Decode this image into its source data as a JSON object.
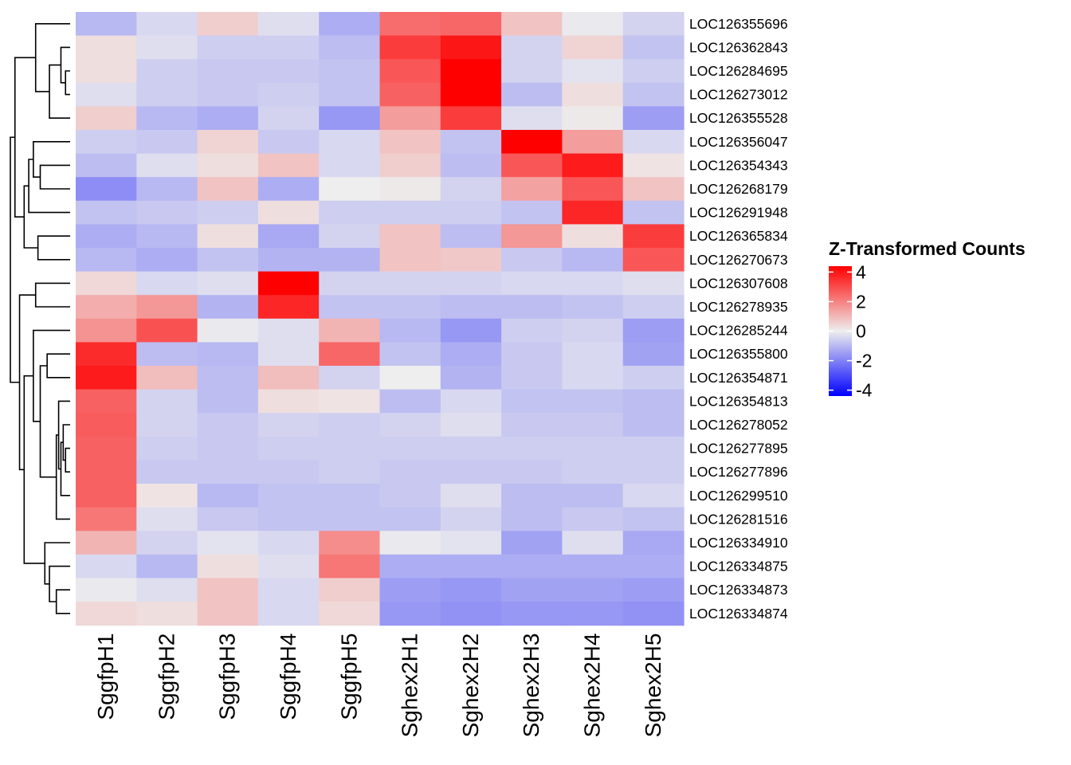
{
  "chart_data": {
    "type": "heatmap",
    "legend": {
      "title": "Z-Transformed Counts",
      "ticks": [
        4,
        2,
        0,
        -2,
        -4
      ],
      "tick_labels": [
        "4",
        "2",
        "0",
        "-2",
        "-4"
      ],
      "range": [
        -4.4,
        4.4
      ],
      "position": "right"
    },
    "color_low": "#0000FF",
    "color_mid": "#EEEEEE",
    "color_high": "#FF0000",
    "columns": [
      "SggfpH1",
      "SggfpH2",
      "SggfpH3",
      "SggfpH4",
      "SggfpH5",
      "Sghex2H1",
      "Sghex2H2",
      "Sghex2H3",
      "Sghex2H4",
      "Sghex2H5"
    ],
    "rows": [
      "LOC126355696",
      "LOC126362843",
      "LOC126284695",
      "LOC126273012",
      "LOC126355528",
      "LOC126356047",
      "LOC126354343",
      "LOC126268179",
      "LOC126291948",
      "LOC126365834",
      "LOC126270673",
      "LOC126307608",
      "LOC126278935",
      "LOC126285244",
      "LOC126355800",
      "LOC126354871",
      "LOC126354813",
      "LOC126278052",
      "LOC126277895",
      "LOC126277896",
      "LOC126299510",
      "LOC126281516",
      "LOC126334910",
      "LOC126334875",
      "LOC126334873",
      "LOC126334874"
    ],
    "values": [
      [
        -1.0,
        -0.4,
        0.6,
        -0.3,
        -1.2,
        2.4,
        2.5,
        0.8,
        -0.1,
        -0.5
      ],
      [
        0.3,
        -0.3,
        -0.6,
        -0.6,
        -0.9,
        3.3,
        4.0,
        -0.5,
        0.5,
        -0.8
      ],
      [
        0.3,
        -0.6,
        -0.7,
        -0.7,
        -0.8,
        2.8,
        4.4,
        -0.5,
        -0.2,
        -0.6
      ],
      [
        -0.3,
        -0.6,
        -0.7,
        -0.6,
        -0.8,
        2.6,
        4.4,
        -0.9,
        0.3,
        -0.8
      ],
      [
        0.6,
        -1.0,
        -1.2,
        -0.5,
        -1.6,
        1.5,
        3.3,
        -0.3,
        0.1,
        -1.5
      ],
      [
        -0.6,
        -0.7,
        0.5,
        -0.7,
        -0.4,
        0.8,
        -0.8,
        4.4,
        1.5,
        -0.4
      ],
      [
        -0.9,
        -0.3,
        0.3,
        0.8,
        -0.4,
        0.6,
        -0.9,
        2.8,
        3.9,
        0.2
      ],
      [
        -1.8,
        -1.0,
        0.8,
        -1.2,
        0.0,
        0.1,
        -0.5,
        1.4,
        2.8,
        0.8
      ],
      [
        -0.8,
        -0.7,
        -0.6,
        0.3,
        -0.6,
        -0.6,
        -0.6,
        -0.8,
        3.7,
        -0.8
      ],
      [
        -1.2,
        -1.0,
        0.3,
        -1.3,
        -0.5,
        0.8,
        -0.9,
        1.6,
        0.3,
        3.3
      ],
      [
        -1.0,
        -1.2,
        -0.8,
        -1.1,
        -1.1,
        0.8,
        0.7,
        -0.7,
        -1.0,
        2.8
      ],
      [
        0.4,
        -0.4,
        -0.3,
        4.4,
        -0.5,
        -0.5,
        -0.5,
        -0.4,
        -0.4,
        -0.3
      ],
      [
        1.2,
        1.6,
        -1.1,
        3.7,
        -0.8,
        -0.8,
        -0.9,
        -0.9,
        -0.8,
        -0.6
      ],
      [
        1.7,
        2.9,
        -0.1,
        -0.3,
        1.1,
        -1.0,
        -1.6,
        -0.6,
        -0.5,
        -1.5
      ],
      [
        3.6,
        -0.9,
        -1.0,
        -0.3,
        2.5,
        -0.8,
        -1.2,
        -0.7,
        -0.4,
        -1.4
      ],
      [
        3.9,
        0.9,
        -0.9,
        0.9,
        -0.5,
        0.0,
        -1.1,
        -0.7,
        -0.4,
        -0.6
      ],
      [
        2.6,
        -0.5,
        -0.9,
        0.3,
        0.2,
        -0.9,
        -0.4,
        -0.8,
        -0.8,
        -0.9
      ],
      [
        2.7,
        -0.5,
        -0.7,
        -0.5,
        -0.6,
        -0.5,
        -0.3,
        -0.7,
        -0.7,
        -0.9
      ],
      [
        2.6,
        -0.6,
        -0.7,
        -0.6,
        -0.6,
        -0.6,
        -0.6,
        -0.6,
        -0.6,
        -0.6
      ],
      [
        2.6,
        -0.7,
        -0.7,
        -0.7,
        -0.6,
        -0.7,
        -0.7,
        -0.7,
        -0.6,
        -0.6
      ],
      [
        2.6,
        0.2,
        -1.0,
        -0.8,
        -0.8,
        -0.7,
        -0.3,
        -0.9,
        -0.9,
        -0.4
      ],
      [
        2.2,
        -0.3,
        -0.7,
        -0.8,
        -0.8,
        -0.8,
        -0.5,
        -0.9,
        -0.7,
        -0.8
      ],
      [
        1.1,
        -0.5,
        -0.2,
        -0.4,
        1.8,
        -0.1,
        -0.2,
        -1.4,
        -0.3,
        -1.3
      ],
      [
        -0.4,
        -1.0,
        0.3,
        -0.3,
        2.2,
        -1.2,
        -1.2,
        -1.2,
        -1.2,
        -1.2
      ],
      [
        -0.1,
        -0.3,
        0.8,
        -0.4,
        0.6,
        -1.5,
        -1.6,
        -1.4,
        -1.4,
        -1.5
      ],
      [
        0.4,
        0.3,
        0.8,
        -0.4,
        0.4,
        -1.6,
        -1.7,
        -1.6,
        -1.6,
        -1.7
      ]
    ],
    "dendrogram": {
      "leaf_order": [
        0,
        1,
        2,
        3,
        4,
        5,
        6,
        7,
        8,
        9,
        10,
        11,
        12,
        13,
        14,
        15,
        16,
        17,
        18,
        19,
        20,
        21,
        22,
        23,
        24,
        25
      ],
      "merges": [
        [
          2,
          3,
          0.2
        ],
        [
          1,
          "m0",
          0.4
        ],
        [
          "m1",
          4,
          0.9
        ],
        [
          0,
          "m2",
          1.5
        ],
        [
          6,
          7,
          1.3
        ],
        [
          5,
          "m4",
          1.6
        ],
        [
          "m5",
          8,
          1.8
        ],
        [
          9,
          10,
          1.4
        ],
        [
          "m6",
          "m7",
          2.0
        ],
        [
          "m3",
          "m8",
          2.4
        ],
        [
          11,
          12,
          1.5
        ],
        [
          18,
          19,
          0.2
        ],
        [
          17,
          "m11",
          0.3
        ],
        [
          "m12",
          20,
          0.4
        ],
        [
          "m13",
          16,
          0.5
        ],
        [
          "m14",
          21,
          0.6
        ],
        [
          14,
          15,
          1.0
        ],
        [
          "m16",
          "m15",
          1.3
        ],
        [
          13,
          "m17",
          1.6
        ],
        [
          24,
          25,
          0.6
        ],
        [
          23,
          "m19",
          0.9
        ],
        [
          22,
          "m20",
          1.1
        ],
        [
          "m18",
          "m21",
          2.0
        ],
        [
          "m10",
          "m22",
          2.2
        ],
        [
          "m9",
          "m23",
          2.6
        ]
      ]
    }
  }
}
